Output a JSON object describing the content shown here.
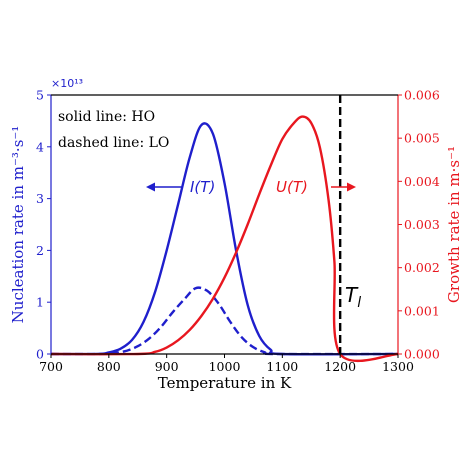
{
  "chart_data": {
    "type": "line",
    "xlabel": "Temperature in K",
    "ylabel_left": "Nucleation rate in m⁻³·s⁻¹",
    "ylabel_right": "Growth rate in m·s⁻¹",
    "xlim": [
      700,
      1300
    ],
    "xticks": [
      "700",
      "800",
      "900",
      "1000",
      "1100",
      "1200",
      "1300"
    ],
    "ylim_left": [
      0,
      5
    ],
    "yticks_left": [
      "0",
      "1",
      "2",
      "3",
      "4",
      "5"
    ],
    "left_scale_label": "×10¹³",
    "ylim_right": [
      0,
      0.006
    ],
    "yticks_right": [
      "0.000",
      "0.001",
      "0.002",
      "0.003",
      "0.004",
      "0.005",
      "0.006"
    ],
    "annotations": {
      "solid_line": "solid line: HO",
      "dashed_line": "dashed line: LO",
      "nucleation_curve": "I(T)",
      "growth_curve": "U(T)",
      "liquidus": "T_l"
    },
    "liquidus_temperature": 1200,
    "colors": {
      "nucleation": "#1f1fcc",
      "growth": "#e8171f",
      "liquidus": "#000000"
    },
    "series": [
      {
        "axis": "left",
        "style": "solid",
        "color": "#1f1fcc",
        "x": [
          700,
          780,
          800,
          820,
          840,
          860,
          880,
          900,
          920,
          940,
          960,
          980,
          1000,
          1020,
          1040,
          1060,
          1080,
          1100,
          1300
        ],
        "y": [
          0,
          0,
          0.03,
          0.1,
          0.27,
          0.62,
          1.2,
          2.0,
          2.9,
          3.8,
          4.42,
          4.25,
          3.3,
          2.0,
          0.95,
          0.35,
          0.08,
          0,
          0
        ]
      },
      {
        "axis": "left",
        "style": "dashed",
        "color": "#1f1fcc",
        "x": [
          700,
          790,
          810,
          830,
          850,
          870,
          890,
          910,
          930,
          950,
          970,
          990,
          1010,
          1030,
          1050,
          1070,
          1085,
          1300
        ],
        "y": [
          0,
          0,
          0.02,
          0.06,
          0.15,
          0.3,
          0.52,
          0.8,
          1.05,
          1.27,
          1.22,
          0.97,
          0.62,
          0.32,
          0.13,
          0.03,
          0,
          0
        ]
      },
      {
        "axis": "right",
        "style": "solid",
        "color": "#e8171f",
        "x": [
          700,
          850,
          880,
          900,
          920,
          940,
          960,
          980,
          1000,
          1020,
          1040,
          1060,
          1080,
          1100,
          1120,
          1135,
          1150,
          1165,
          1180,
          1190,
          1200,
          1300
        ],
        "y": [
          0,
          0,
          5e-05,
          0.00015,
          0.00032,
          0.00056,
          0.00088,
          0.00128,
          0.00177,
          0.00235,
          0.003,
          0.0037,
          0.00437,
          0.00498,
          0.00535,
          0.0055,
          0.00535,
          0.00478,
          0.00356,
          0.00215,
          0,
          0
        ]
      }
    ]
  }
}
